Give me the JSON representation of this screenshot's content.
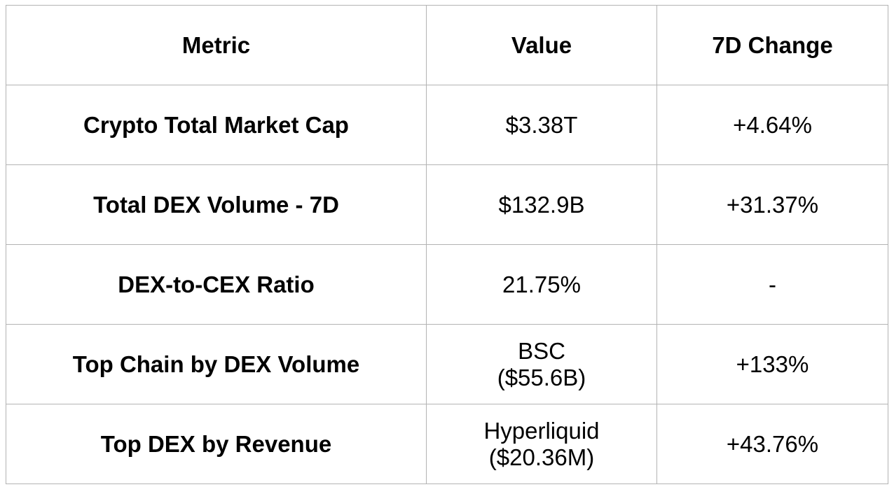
{
  "table": {
    "headers": [
      "Metric",
      "Value",
      "7D Change"
    ],
    "rows": [
      {
        "metric": "Crypto Total Market Cap",
        "value_line1": "$3.38T",
        "value_line2": "",
        "change": "+4.64%"
      },
      {
        "metric": "Total DEX Volume - 7D",
        "value_line1": "$132.9B",
        "value_line2": "",
        "change": "+31.37%"
      },
      {
        "metric": "DEX-to-CEX Ratio",
        "value_line1": "21.75%",
        "value_line2": "",
        "change": "-"
      },
      {
        "metric": "Top Chain by DEX Volume",
        "value_line1": "BSC",
        "value_line2": "($55.6B)",
        "change": "+133%"
      },
      {
        "metric": "Top DEX by Revenue",
        "value_line1": "Hyperliquid",
        "value_line2": "($20.36M)",
        "change": "+43.76%"
      }
    ],
    "border_color": "#b3b3b3",
    "text_color": "#000000"
  }
}
